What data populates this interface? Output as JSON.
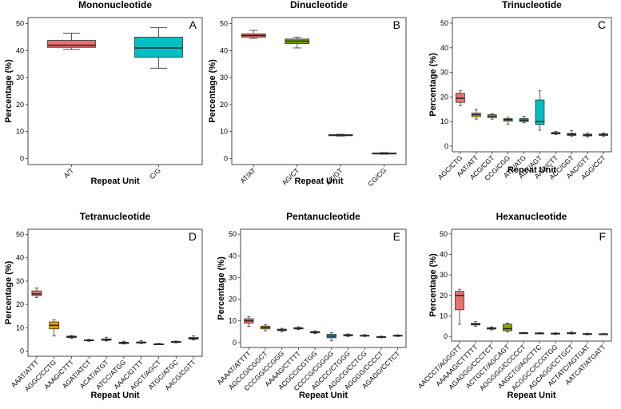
{
  "chart_data": [
    {
      "type": "box",
      "panel": "A",
      "title": "Mononucleotide",
      "xlabel": "Repeat Unit",
      "ylabel": "Percentage (%)",
      "ylim": [
        0,
        50
      ],
      "yticks": [
        0,
        10,
        20,
        30,
        40,
        50
      ],
      "grid": false,
      "categories": [
        "A/T",
        "C/G"
      ],
      "colors": [
        "#e8706e",
        "#00bfc4"
      ],
      "boxes": [
        {
          "min": 40.5,
          "q1": 41.2,
          "median": 42.0,
          "q3": 43.8,
          "max": 46.5
        },
        {
          "min": 33.5,
          "q1": 37.5,
          "median": 41.0,
          "q3": 45.0,
          "max": 48.5
        }
      ]
    },
    {
      "type": "box",
      "panel": "B",
      "title": "Dinucleotide",
      "xlabel": "Repeat Unit",
      "ylabel": "Percentage (%)",
      "ylim": [
        0,
        50
      ],
      "yticks": [
        0,
        10,
        20,
        30,
        40,
        50
      ],
      "grid": false,
      "categories": [
        "AT/AT",
        "AG/CT",
        "AC/GT",
        "CG/CG"
      ],
      "colors": [
        "#e8706e",
        "#7cae00",
        "#00bfc4",
        "#c77cff"
      ],
      "boxes": [
        {
          "min": 44.5,
          "q1": 45.0,
          "median": 45.6,
          "q3": 46.2,
          "max": 47.5
        },
        {
          "min": 41.0,
          "q1": 42.6,
          "median": 43.5,
          "q3": 44.3,
          "max": 45.0
        },
        {
          "min": 8.3,
          "q1": 8.5,
          "median": 8.7,
          "q3": 8.8,
          "max": 9.0
        },
        {
          "min": 1.6,
          "q1": 1.8,
          "median": 1.9,
          "q3": 2.0,
          "max": 2.2
        }
      ]
    },
    {
      "type": "box",
      "panel": "C",
      "title": "Trinucleotide",
      "xlabel": "Repeat Unit",
      "ylabel": "Percentage (%)",
      "ylim": [
        0,
        50
      ],
      "yticks": [
        0,
        10,
        20,
        30,
        40,
        50
      ],
      "grid": false,
      "categories": [
        "AGC/CTG",
        "AAT/ATT",
        "ACG/CGT",
        "CCG/CGG",
        "ATC/ATG",
        "ACT/AGT",
        "AAG/CTT",
        "ACC/GGT",
        "AAC/GTT",
        "AGG/CCT"
      ],
      "colors": [
        "#e8706e",
        "#e69f00",
        "#c9a800",
        "#7cae00",
        "#00b0a0",
        "#00bfc4",
        "#5a9ad8",
        "#7b7be0",
        "#b07ce8",
        "#d47ce0"
      ],
      "boxes": [
        {
          "min": 16.5,
          "q1": 17.8,
          "median": 19.5,
          "q3": 21.5,
          "max": 22.5
        },
        {
          "min": 11.0,
          "q1": 12.0,
          "median": 12.8,
          "q3": 13.5,
          "max": 15.0
        },
        {
          "min": 11.0,
          "q1": 11.6,
          "median": 12.2,
          "q3": 12.8,
          "max": 13.2
        },
        {
          "min": 9.0,
          "q1": 10.2,
          "median": 10.8,
          "q3": 11.2,
          "max": 11.8
        },
        {
          "min": 9.5,
          "q1": 10.0,
          "median": 10.6,
          "q3": 11.2,
          "max": 12.2
        },
        {
          "min": 6.5,
          "q1": 8.8,
          "median": 10.0,
          "q3": 18.8,
          "max": 22.5
        },
        {
          "min": 4.8,
          "q1": 5.0,
          "median": 5.3,
          "q3": 5.6,
          "max": 6.0
        },
        {
          "min": 4.0,
          "q1": 4.4,
          "median": 4.8,
          "q3": 5.2,
          "max": 6.3
        },
        {
          "min": 3.8,
          "q1": 4.2,
          "median": 4.5,
          "q3": 4.9,
          "max": 5.3
        },
        {
          "min": 4.0,
          "q1": 4.4,
          "median": 4.7,
          "q3": 5.0,
          "max": 5.4
        }
      ]
    },
    {
      "type": "box",
      "panel": "D",
      "title": "Tetranucleotide",
      "xlabel": "Repeat Unit",
      "ylabel": "Percentage (%)",
      "ylim": [
        0,
        50
      ],
      "yticks": [
        0,
        10,
        20,
        30,
        40,
        50
      ],
      "grid": false,
      "categories": [
        "AAAT/ATTT",
        "AGGC/CCTG",
        "AAAG/CTTT",
        "AGAT/ATCT",
        "ACAT/ATGT",
        "ATCC/ATGG",
        "AAAC/GTTT",
        "AGCT/AGCT",
        "ATGC/ATGC",
        "AACG/CGTT"
      ],
      "colors": [
        "#e8706e",
        "#e69f00",
        "#b0a800",
        "#7cae00",
        "#00b86b",
        "#00bfc4",
        "#00a9ff",
        "#7b7be0",
        "#c77cff",
        "#ff61c3"
      ],
      "boxes": [
        {
          "min": 23.0,
          "q1": 23.8,
          "median": 24.5,
          "q3": 25.8,
          "max": 27.0
        },
        {
          "min": 6.5,
          "q1": 9.5,
          "median": 11.0,
          "q3": 12.5,
          "max": 13.5
        },
        {
          "min": 5.5,
          "q1": 5.8,
          "median": 6.1,
          "q3": 6.4,
          "max": 6.7
        },
        {
          "min": 4.2,
          "q1": 4.4,
          "median": 4.6,
          "q3": 4.8,
          "max": 5.0
        },
        {
          "min": 4.3,
          "q1": 4.6,
          "median": 4.9,
          "q3": 5.2,
          "max": 5.9
        },
        {
          "min": 3.0,
          "q1": 3.2,
          "median": 3.5,
          "q3": 3.8,
          "max": 4.2
        },
        {
          "min": 3.2,
          "q1": 3.4,
          "median": 3.7,
          "q3": 3.9,
          "max": 4.5
        },
        {
          "min": 2.8,
          "q1": 2.9,
          "median": 3.0,
          "q3": 3.1,
          "max": 3.3
        },
        {
          "min": 3.5,
          "q1": 3.7,
          "median": 3.9,
          "q3": 4.1,
          "max": 4.3
        },
        {
          "min": 4.8,
          "q1": 5.1,
          "median": 5.4,
          "q3": 5.8,
          "max": 6.5
        }
      ]
    },
    {
      "type": "box",
      "panel": "E",
      "title": "Pentanucleotide",
      "xlabel": "Repeat Unit",
      "ylabel": "Percentage (%)",
      "ylim": [
        0,
        50
      ],
      "yticks": [
        0,
        10,
        20,
        30,
        40,
        50
      ],
      "grid": false,
      "categories": [
        "AAAAT/ATTTT",
        "AGCCG/CGGCT",
        "CCCGG/CCGGG",
        "AAAAG/CTTTT",
        "ACGCC/CGTGG",
        "CCCCG/CGGGG",
        "AGCCC/CTGGG",
        "AGGCG/CCTCG",
        "AGGGG/CCCCT",
        "AGAGG/CCTCT"
      ],
      "colors": [
        "#e8706e",
        "#e69f00",
        "#b0a800",
        "#7cae00",
        "#00b86b",
        "#00bfc4",
        "#00a9ff",
        "#7b7be0",
        "#c77cff",
        "#ff61c3"
      ],
      "boxes": [
        {
          "min": 7.5,
          "q1": 9.0,
          "median": 10.0,
          "q3": 11.0,
          "max": 12.0
        },
        {
          "min": 5.5,
          "q1": 6.3,
          "median": 7.0,
          "q3": 7.6,
          "max": 8.2
        },
        {
          "min": 5.0,
          "q1": 5.5,
          "median": 5.9,
          "q3": 6.2,
          "max": 6.6
        },
        {
          "min": 6.0,
          "q1": 6.3,
          "median": 6.6,
          "q3": 6.9,
          "max": 7.3
        },
        {
          "min": 4.2,
          "q1": 4.5,
          "median": 4.8,
          "q3": 5.1,
          "max": 5.4
        },
        {
          "min": 0.8,
          "q1": 2.2,
          "median": 3.0,
          "q3": 3.8,
          "max": 4.6
        },
        {
          "min": 2.8,
          "q1": 3.1,
          "median": 3.4,
          "q3": 3.7,
          "max": 4.0
        },
        {
          "min": 2.8,
          "q1": 3.0,
          "median": 3.2,
          "q3": 3.4,
          "max": 3.7
        },
        {
          "min": 2.2,
          "q1": 2.4,
          "median": 2.6,
          "q3": 2.8,
          "max": 3.0
        },
        {
          "min": 2.8,
          "q1": 3.0,
          "median": 3.2,
          "q3": 3.4,
          "max": 3.6
        }
      ]
    },
    {
      "type": "box",
      "panel": "F",
      "title": "Hexanucleotide",
      "xlabel": "Repeat Unit",
      "ylabel": "Percentage (%)",
      "ylim": [
        0,
        50
      ],
      "yticks": [
        0,
        10,
        20,
        30,
        40,
        50
      ],
      "grid": false,
      "categories": [
        "AACCCT/AGGGTT",
        "AAAAAG/CTTTTT",
        "AGAGGG/CCCTCT",
        "ACTGCT/AGCAGT",
        "AGGGGG/CCCCCT",
        "AAGCTG/AGCTTC",
        "ACGGCC/CCGTGG",
        "AGCAGG/CCTGCT",
        "ACTATC/AGTGAT",
        "AATCAT/ATGATT"
      ],
      "colors": [
        "#e8706e",
        "#d89000",
        "#b0a800",
        "#7cae00",
        "#00b86b",
        "#00bfc4",
        "#00a9ff",
        "#7b7be0",
        "#c77cff",
        "#ff61c3"
      ],
      "boxes": [
        {
          "min": 6.0,
          "q1": 13.0,
          "median": 20.0,
          "q3": 22.0,
          "max": 23.0
        },
        {
          "min": 5.0,
          "q1": 5.6,
          "median": 6.0,
          "q3": 6.4,
          "max": 7.2
        },
        {
          "min": 3.2,
          "q1": 3.6,
          "median": 4.0,
          "q3": 4.3,
          "max": 4.7
        },
        {
          "min": 2.2,
          "q1": 2.8,
          "median": 3.8,
          "q3": 6.0,
          "max": 6.5
        },
        {
          "min": 1.4,
          "q1": 1.6,
          "median": 1.7,
          "q3": 1.8,
          "max": 2.0
        },
        {
          "min": 1.2,
          "q1": 1.4,
          "median": 1.6,
          "q3": 1.7,
          "max": 1.9
        },
        {
          "min": 1.0,
          "q1": 1.2,
          "median": 1.4,
          "q3": 1.6,
          "max": 1.8
        },
        {
          "min": 1.2,
          "q1": 1.4,
          "median": 1.6,
          "q3": 1.8,
          "max": 2.2
        },
        {
          "min": 0.8,
          "q1": 1.0,
          "median": 1.2,
          "q3": 1.4,
          "max": 1.6
        },
        {
          "min": 1.0,
          "q1": 1.1,
          "median": 1.2,
          "q3": 1.3,
          "max": 1.4
        }
      ]
    }
  ]
}
